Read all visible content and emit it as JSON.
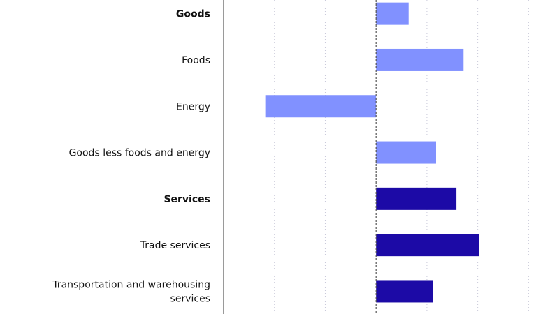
{
  "chart_data": {
    "type": "bar",
    "orientation": "horizontal",
    "categories": [
      {
        "label": "Goods",
        "bold": true
      },
      {
        "label": "Foods",
        "bold": false
      },
      {
        "label": "Energy",
        "bold": false
      },
      {
        "label": "Goods less foods and energy",
        "bold": false
      },
      {
        "label": "Services",
        "bold": true
      },
      {
        "label": "Trade services",
        "bold": false
      },
      {
        "label": "Transportation and warehousing services",
        "bold": false
      }
    ],
    "values": [
      0.64,
      1.72,
      -2.18,
      1.18,
      1.58,
      2.02,
      1.12
    ],
    "xlim": [
      -3,
      3.6
    ],
    "gridlines": [
      -2,
      -1,
      1,
      2,
      3
    ],
    "grid": true,
    "colors": {
      "goods": "#8191ff",
      "services": "#1c0aa6",
      "axis": "#9a9a9a",
      "zero_line": "#555555",
      "grid": "#c8c8d8"
    },
    "series_group": [
      "goods",
      "goods",
      "goods",
      "goods",
      "services",
      "services",
      "services"
    ]
  }
}
